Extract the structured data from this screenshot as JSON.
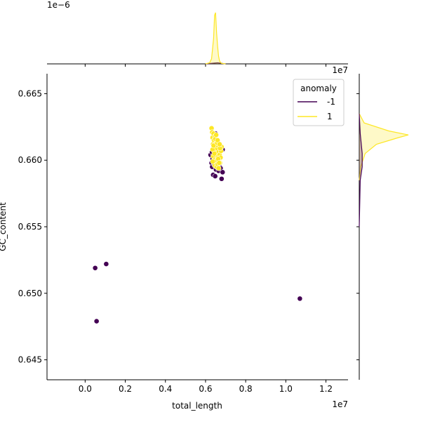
{
  "chart_data": {
    "type": "scatter",
    "title": "",
    "xlabel": "total_length",
    "ylabel": "GC_content",
    "x_offset_label": "1e7",
    "y_offset_label_top_marginal": "1e−6",
    "x_offset_label_right_marginal": "1e7",
    "xlim": [
      -1900000,
      13100000
    ],
    "ylim": [
      0.6435,
      0.6665
    ],
    "x_ticks": [
      0,
      2000000,
      4000000,
      6000000,
      8000000,
      10000000,
      12000000
    ],
    "x_tick_labels": [
      "0.0",
      "0.2",
      "0.4",
      "0.6",
      "0.8",
      "1.0",
      "1.2"
    ],
    "y_ticks": [
      0.645,
      0.65,
      0.655,
      0.66,
      0.665
    ],
    "y_tick_labels": [
      "0.645",
      "0.650",
      "0.655",
      "0.660",
      "0.665"
    ],
    "grid": false,
    "legend": {
      "title": "anomaly",
      "placement": "top-right",
      "entries": [
        {
          "label": "-1",
          "color": "#440154"
        },
        {
          "label": "1",
          "color": "#fde725"
        }
      ]
    },
    "series": [
      {
        "name": "-1",
        "color": "#440154",
        "points": [
          [
            500000,
            0.6519
          ],
          [
            1050000,
            0.6522
          ],
          [
            570000,
            0.6479
          ],
          [
            10700000,
            0.6496
          ],
          [
            6250000,
            0.6604
          ],
          [
            6300000,
            0.6598
          ],
          [
            6330000,
            0.6595
          ],
          [
            6350000,
            0.6601
          ],
          [
            6400000,
            0.6603
          ],
          [
            6420000,
            0.6597
          ],
          [
            6450000,
            0.6599
          ],
          [
            6480000,
            0.6605
          ],
          [
            6500000,
            0.6602
          ],
          [
            6500000,
            0.662
          ],
          [
            6520000,
            0.6593
          ],
          [
            6550000,
            0.66
          ],
          [
            6580000,
            0.6596
          ],
          [
            6600000,
            0.6599
          ],
          [
            6620000,
            0.6608
          ],
          [
            6650000,
            0.6592
          ],
          [
            6700000,
            0.6597
          ],
          [
            6750000,
            0.6594
          ],
          [
            6800000,
            0.6586
          ],
          [
            6850000,
            0.6608
          ],
          [
            6850000,
            0.6591
          ],
          [
            6380000,
            0.6589
          ],
          [
            6480000,
            0.6588
          ],
          [
            6320000,
            0.6606
          ]
        ]
      },
      {
        "name": "1",
        "color": "#fde725",
        "points": [
          [
            6300000,
            0.6624
          ],
          [
            6330000,
            0.6621
          ],
          [
            6350000,
            0.6617
          ],
          [
            6370000,
            0.6612
          ],
          [
            6400000,
            0.662
          ],
          [
            6420000,
            0.6615
          ],
          [
            6450000,
            0.6609
          ],
          [
            6470000,
            0.6618
          ],
          [
            6500000,
            0.6612
          ],
          [
            6520000,
            0.6606
          ],
          [
            6550000,
            0.6614
          ],
          [
            6570000,
            0.6609
          ],
          [
            6600000,
            0.6603
          ],
          [
            6620000,
            0.6611
          ],
          [
            6650000,
            0.6606
          ],
          [
            6670000,
            0.66
          ],
          [
            6700000,
            0.6604
          ],
          [
            6720000,
            0.6598
          ],
          [
            6750000,
            0.6602
          ],
          [
            6770000,
            0.6607
          ],
          [
            6800000,
            0.661
          ],
          [
            6380000,
            0.6603
          ],
          [
            6420000,
            0.66
          ],
          [
            6460000,
            0.6596
          ],
          [
            6500000,
            0.6599
          ],
          [
            6550000,
            0.6595
          ],
          [
            6600000,
            0.6597
          ],
          [
            6650000,
            0.6594
          ],
          [
            6350000,
            0.6608
          ],
          [
            6400000,
            0.6611
          ],
          [
            6480000,
            0.6616
          ],
          [
            6530000,
            0.6619
          ],
          [
            6580000,
            0.6613
          ],
          [
            6630000,
            0.6601
          ],
          [
            6680000,
            0.6598
          ],
          [
            6720000,
            0.6609
          ],
          [
            6440000,
            0.6605
          ],
          [
            6600000,
            0.6615
          ],
          [
            6360000,
            0.6599
          ],
          [
            6700000,
            0.6612
          ]
        ]
      }
    ],
    "marginal_x_density": {
      "series": [
        {
          "name": "-1",
          "color": "#440154",
          "x": [
            6000000,
            6600000,
            7000000
          ],
          "density": [
            0.0,
            0.02,
            0.0
          ]
        },
        {
          "name": "1",
          "color": "#fde725",
          "x": [
            6000000,
            6200000,
            6300000,
            6400000,
            6450000,
            6500000,
            6550000,
            6600000,
            6650000,
            6700000,
            6800000,
            7000000
          ],
          "density": [
            0.0,
            0.02,
            0.1,
            0.5,
            0.95,
            1.0,
            0.6,
            0.35,
            0.15,
            0.05,
            0.01,
            0.0
          ]
        }
      ]
    },
    "marginal_y_density": {
      "series": [
        {
          "name": "-1",
          "color": "#440154",
          "y": [
            0.655,
            0.6585,
            0.6595,
            0.6605,
            0.662,
            0.6635
          ],
          "density": [
            0.0,
            0.02,
            0.06,
            0.06,
            0.02,
            0.0
          ]
        },
        {
          "name": "1",
          "color": "#fde725",
          "y": [
            0.6585,
            0.6595,
            0.6605,
            0.6612,
            0.6617,
            0.6619,
            0.6622,
            0.6628,
            0.6635
          ],
          "density": [
            0.0,
            0.03,
            0.12,
            0.35,
            0.8,
            1.0,
            0.6,
            0.1,
            0.0
          ]
        }
      ]
    }
  }
}
